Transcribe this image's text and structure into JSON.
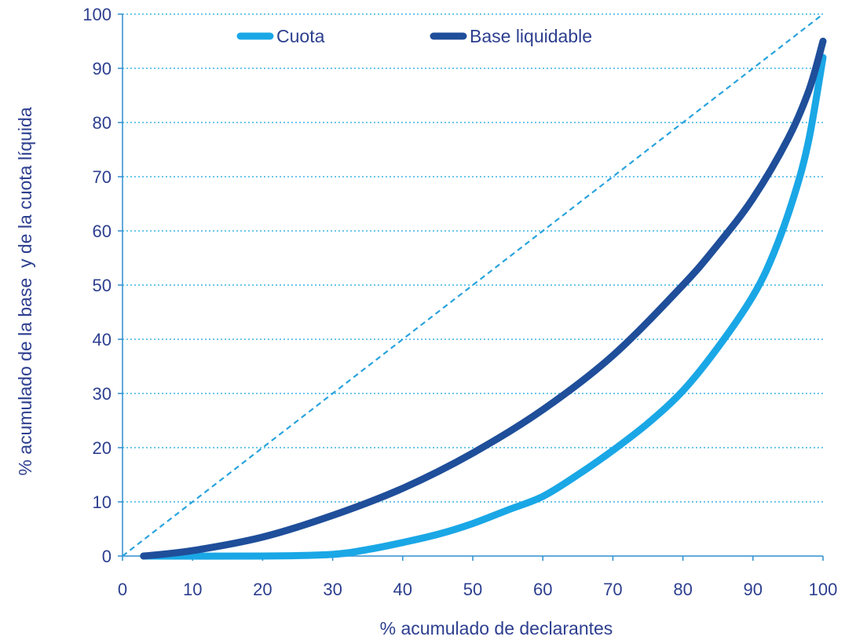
{
  "chart_data": {
    "type": "line",
    "title": "",
    "xlabel": "% acumulado de declarantes",
    "ylabel": "% acumulado de la base  y de la cuota líquida",
    "xlim": [
      0,
      100
    ],
    "ylim": [
      0,
      100
    ],
    "x_ticks": [
      "0",
      "10",
      "20",
      "30",
      "40",
      "50",
      "60",
      "70",
      "80",
      "90",
      "100"
    ],
    "y_ticks": [
      "0",
      "10",
      "20",
      "30",
      "40",
      "50",
      "60",
      "70",
      "80",
      "90",
      "100"
    ],
    "grid": "horizontal-dotted",
    "legend_position": "top",
    "equality_line": {
      "x": [
        0,
        100
      ],
      "y": [
        0,
        100
      ],
      "style": "dashed",
      "color": "#29a3dd"
    },
    "series": [
      {
        "name": "Cuota",
        "color": "#1aa7e6",
        "x": [
          3,
          20,
          30,
          35,
          40,
          45,
          50,
          55,
          60,
          65,
          70,
          75,
          80,
          85,
          90,
          93,
          96,
          98,
          100
        ],
        "y": [
          0,
          0,
          0.3,
          1.2,
          2.5,
          4,
          6,
          8.5,
          11,
          15,
          19.5,
          24.5,
          30.5,
          38.5,
          48,
          56,
          67,
          77,
          92
        ]
      },
      {
        "name": "Base liquidable",
        "color": "#1f4e9a",
        "x": [
          3,
          10,
          20,
          30,
          40,
          50,
          60,
          70,
          80,
          85,
          90,
          95,
          98,
          100
        ],
        "y": [
          0,
          1,
          3.5,
          7.5,
          12.5,
          19,
          27,
          37,
          50,
          57.5,
          66,
          77,
          86,
          95
        ]
      }
    ]
  }
}
